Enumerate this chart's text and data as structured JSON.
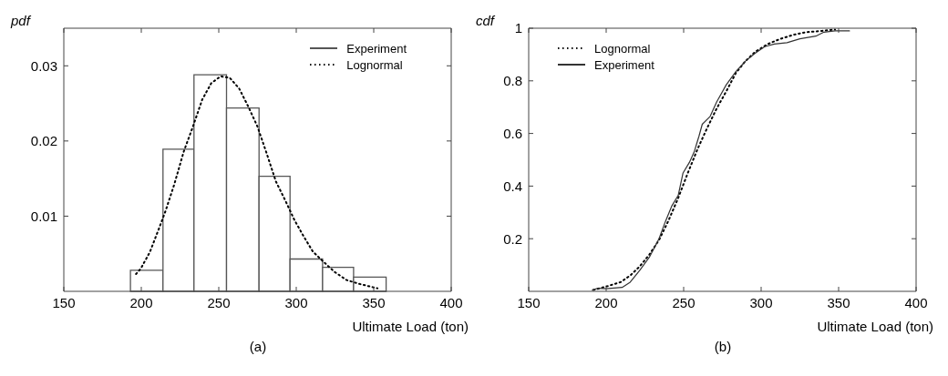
{
  "chart_data": [
    {
      "type": "histogram",
      "ylabel": "pdf",
      "xlabel": "Ultimate Load (ton)",
      "annotations": [
        "(a)"
      ],
      "bins": [
        193,
        214,
        234,
        255,
        276,
        296,
        317,
        337,
        358
      ],
      "series": [
        {
          "name": "Experiment",
          "color": "#555555",
          "values": [
            0.0028,
            0.0189,
            0.0288,
            0.0244,
            0.0153,
            0.0043,
            0.0032,
            0.0019
          ]
        },
        {
          "name": "Lognormal",
          "type": "line",
          "line_style": "dotted",
          "color": "#000000",
          "x": [
            196.6,
            199.6,
            205.5,
            211.5,
            215.5,
            221.4,
            227.4,
            233.3,
            239.3,
            245.2,
            251.2,
            257.1,
            263.1,
            269,
            275,
            281,
            286.9,
            292.9,
            298.8,
            304.8,
            310.7,
            316.7,
            324.6,
            332.5,
            340.5,
            348.4,
            352.4
          ],
          "values": [
            0.0023,
            0.003,
            0.0052,
            0.0084,
            0.0106,
            0.0143,
            0.0186,
            0.0219,
            0.0255,
            0.0277,
            0.0286,
            0.0284,
            0.027,
            0.0246,
            0.0219,
            0.0183,
            0.0146,
            0.0121,
            0.0095,
            0.0073,
            0.0053,
            0.0041,
            0.0026,
            0.0015,
            0.001,
            0.0006,
            0.0004
          ]
        }
      ],
      "xlim": [
        150,
        400
      ],
      "xticks": [
        150,
        200,
        250,
        300,
        350,
        400
      ],
      "ylim": [
        0,
        0.035
      ],
      "yticks": [
        0.01,
        0.02,
        0.03
      ],
      "legend": "top right"
    },
    {
      "type": "line",
      "ylabel": "cdf",
      "xlabel": "Ultimate Load (ton)",
      "annotations": [
        "(b)"
      ],
      "series": [
        {
          "name": "Lognormal",
          "line_style": "dotted",
          "color": "#000000",
          "x": [
            191.7,
            201,
            209.3,
            215.5,
            221.7,
            227.9,
            234.1,
            240.3,
            246.5,
            252.7,
            258.9,
            265.1,
            271.3,
            277.5,
            283.7,
            289.9,
            296.1,
            304.3,
            312.6,
            320.9,
            329.1,
            339.5,
            347.7
          ],
          "values": [
            0.005,
            0.02,
            0.035,
            0.06,
            0.095,
            0.14,
            0.195,
            0.27,
            0.355,
            0.45,
            0.54,
            0.62,
            0.695,
            0.76,
            0.83,
            0.875,
            0.91,
            0.94,
            0.96,
            0.975,
            0.985,
            0.99,
            0.995
          ]
        },
        {
          "name": "Experiment",
          "line_style": "solid",
          "color": "#333333",
          "x": [
            191.1,
            194.8,
            200,
            210.3,
            215.5,
            221.7,
            227.9,
            234.1,
            238.2,
            242.4,
            246.5,
            249.6,
            253.7,
            256.8,
            259.9,
            262,
            267.1,
            271.3,
            277.5,
            283.7,
            289.9,
            296.1,
            302.3,
            308.5,
            316.7,
            325,
            335.3,
            340.5,
            347.7,
            357
          ],
          "values": [
            0.005,
            0.012,
            0.01,
            0.015,
            0.035,
            0.08,
            0.13,
            0.2,
            0.265,
            0.325,
            0.365,
            0.45,
            0.49,
            0.53,
            0.59,
            0.635,
            0.665,
            0.72,
            0.785,
            0.835,
            0.875,
            0.905,
            0.93,
            0.94,
            0.945,
            0.96,
            0.97,
            0.985,
            0.99,
            0.99
          ]
        }
      ],
      "xlim": [
        150,
        400
      ],
      "xticks": [
        150,
        200,
        250,
        300,
        350,
        400
      ],
      "ylim": [
        0,
        1
      ],
      "yticks": [
        0.2,
        0.4,
        0.6,
        0.8,
        1
      ],
      "legend": "top left"
    }
  ]
}
